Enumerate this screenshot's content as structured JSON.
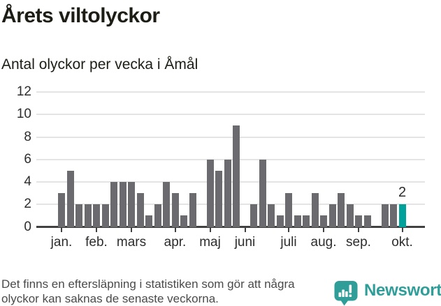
{
  "header": {
    "title": "Årets viltolyckor",
    "subtitle": "Antal olyckor per vecka i Åmål"
  },
  "chart_data": {
    "type": "bar",
    "title": "Årets viltolyckor",
    "subtitle": "Antal olyckor per vecka i Åmål",
    "x_unit": "vecka",
    "values": [
      3,
      5,
      2,
      2,
      2,
      2,
      4,
      4,
      4,
      3,
      1,
      2,
      4,
      3,
      1,
      3,
      0,
      6,
      5,
      6,
      9,
      0,
      2,
      6,
      2,
      1,
      3,
      1,
      1,
      3,
      1,
      2,
      3,
      2,
      1,
      1,
      0,
      2,
      2,
      2
    ],
    "highlight_index": 39,
    "highlight_label": "2",
    "y_ticks": [
      0,
      2,
      4,
      6,
      8,
      10,
      12
    ],
    "ylim": [
      0,
      12
    ],
    "grid": "horizontal",
    "legend": "none",
    "month_ticks": [
      {
        "label": "jan.",
        "week": 0
      },
      {
        "label": "feb.",
        "week": 4
      },
      {
        "label": "mars",
        "week": 8
      },
      {
        "label": "apr.",
        "week": 13
      },
      {
        "label": "maj",
        "week": 17
      },
      {
        "label": "juni",
        "week": 21
      },
      {
        "label": "juli",
        "week": 26
      },
      {
        "label": "aug.",
        "week": 30
      },
      {
        "label": "sep.",
        "week": 34
      },
      {
        "label": "okt.",
        "week": 39
      }
    ],
    "colors": {
      "bar": "#6b6a6f",
      "highlight": "#00a19b",
      "gridline": "#e4e4e4",
      "axis": "#414141",
      "label": "#2d2d2d"
    }
  },
  "footer": {
    "note_line1": "Det finns en eftersläpning i statistiken som gör att några",
    "note_line2": "olyckor kan saknas de senaste veckorna.",
    "brand": "Newsworthy",
    "brand_color": "#2f9e99"
  }
}
